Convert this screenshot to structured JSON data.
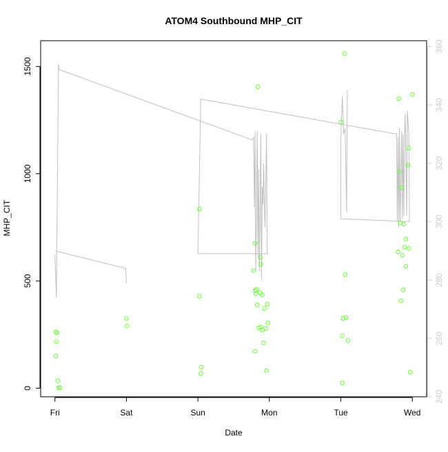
{
  "chart_data": {
    "type": "scatter",
    "title": "ATOM4 Southbound MHP_CIT",
    "xlabel": "Date",
    "ylabel": "MHP_CIT",
    "x_ticks": [
      "Fri",
      "Sat",
      "Sun",
      "Mon",
      "Tue",
      "Wed"
    ],
    "x_tick_values": [
      0,
      1,
      2,
      3,
      4,
      5
    ],
    "xlim": [
      -0.2,
      5.2
    ],
    "y_ticks": [
      0,
      500,
      1000,
      1500
    ],
    "ylim": [
      -40,
      1620
    ],
    "y2_ticks": [
      240,
      260,
      280,
      300,
      320,
      340,
      360
    ],
    "y2lim": [
      240,
      362
    ],
    "grid": false,
    "colors": {
      "points": "#66ff33",
      "line": "#c0c0c0",
      "right_axis": "#cccccc",
      "axis": "#000000"
    },
    "series": [
      {
        "axis": "left",
        "style": "points",
        "points": [
          [
            0.01,
            262
          ],
          [
            0.03,
            258
          ],
          [
            0.02,
            218
          ],
          [
            0.01,
            150
          ],
          [
            0.04,
            35
          ],
          [
            0.05,
            2
          ],
          [
            0.07,
            2
          ],
          [
            1.0,
            325
          ],
          [
            1.01,
            290
          ],
          [
            2.02,
            835
          ],
          [
            2.02,
            428
          ],
          [
            2.05,
            98
          ],
          [
            2.04,
            68
          ],
          [
            2.84,
            1405
          ],
          [
            2.78,
            548
          ],
          [
            2.8,
            675
          ],
          [
            2.8,
            455
          ],
          [
            2.81,
            440
          ],
          [
            2.82,
            460
          ],
          [
            2.83,
            388
          ],
          [
            2.85,
            282
          ],
          [
            2.87,
            445
          ],
          [
            2.87,
            610
          ],
          [
            2.88,
            578
          ],
          [
            2.88,
            285
          ],
          [
            2.9,
            435
          ],
          [
            2.9,
            272
          ],
          [
            2.92,
            212
          ],
          [
            2.93,
            372
          ],
          [
            2.95,
            278
          ],
          [
            2.96,
            82
          ],
          [
            2.97,
            392
          ],
          [
            2.98,
            305
          ],
          [
            2.8,
            172
          ],
          [
            4.05,
            1560
          ],
          [
            4.0,
            1240
          ],
          [
            4.06,
            530
          ],
          [
            4.03,
            325
          ],
          [
            4.07,
            330
          ],
          [
            4.02,
            245
          ],
          [
            4.1,
            222
          ],
          [
            4.02,
            25
          ],
          [
            4.81,
            1350
          ],
          [
            4.82,
            1010
          ],
          [
            4.84,
            935
          ],
          [
            4.83,
            770
          ],
          [
            4.8,
            635
          ],
          [
            4.86,
            620
          ],
          [
            4.88,
            765
          ],
          [
            4.91,
            695
          ],
          [
            4.89,
            658
          ],
          [
            4.95,
            652
          ],
          [
            4.91,
            568
          ],
          [
            4.87,
            458
          ],
          [
            4.84,
            408
          ],
          [
            4.95,
            1120
          ],
          [
            4.94,
            1040
          ],
          [
            5.0,
            1370
          ],
          [
            4.97,
            75
          ]
        ]
      },
      {
        "axis": "right",
        "style": "line",
        "points": [
          [
            0.0,
            289
          ],
          [
            0.02,
            274
          ],
          [
            0.05,
            354
          ],
          [
            0.06,
            352
          ],
          [
            0.07,
            352
          ],
          [
            2.76,
            328
          ],
          [
            2.78,
            329
          ],
          [
            2.79,
            305
          ],
          [
            2.8,
            331
          ],
          [
            2.81,
            283
          ],
          [
            2.82,
            306
          ],
          [
            2.83,
            331
          ],
          [
            2.84,
            288
          ],
          [
            2.85,
            318
          ],
          [
            2.86,
            283
          ],
          [
            2.87,
            305
          ],
          [
            2.88,
            330
          ],
          [
            2.89,
            280
          ],
          [
            2.9,
            312
          ],
          [
            2.91,
            306
          ],
          [
            2.92,
            320
          ],
          [
            2.93,
            305
          ],
          [
            2.94,
            298
          ],
          [
            2.96,
            330
          ],
          [
            2.97,
            289
          ],
          [
            2.99,
            289
          ],
          [
            2.0,
            289
          ],
          [
            2.04,
            342
          ],
          [
            4.78,
            330
          ],
          [
            4.79,
            300
          ],
          [
            4.8,
            329
          ],
          [
            4.81,
            298
          ],
          [
            4.82,
            332
          ],
          [
            4.83,
            300
          ],
          [
            4.85,
            331
          ],
          [
            4.86,
            301
          ],
          [
            4.87,
            330
          ],
          [
            4.88,
            302
          ],
          [
            4.89,
            328
          ],
          [
            4.9,
            337
          ],
          [
            4.92,
            302
          ],
          [
            4.93,
            338
          ],
          [
            4.95,
            330
          ],
          [
            4.96,
            300
          ],
          [
            4.0,
            301
          ],
          [
            4.0,
            329
          ],
          [
            4.02,
            343
          ],
          [
            4.04,
            330
          ],
          [
            4.06,
            332
          ],
          [
            4.08,
            303
          ],
          [
            4.09,
            345
          ],
          [
            4.1,
            345
          ]
        ]
      },
      {
        "axis": "right",
        "style": "line",
        "points": [
          [
            0.0,
            290
          ],
          [
            0.99,
            284
          ],
          [
            1.0,
            279
          ]
        ]
      }
    ]
  }
}
